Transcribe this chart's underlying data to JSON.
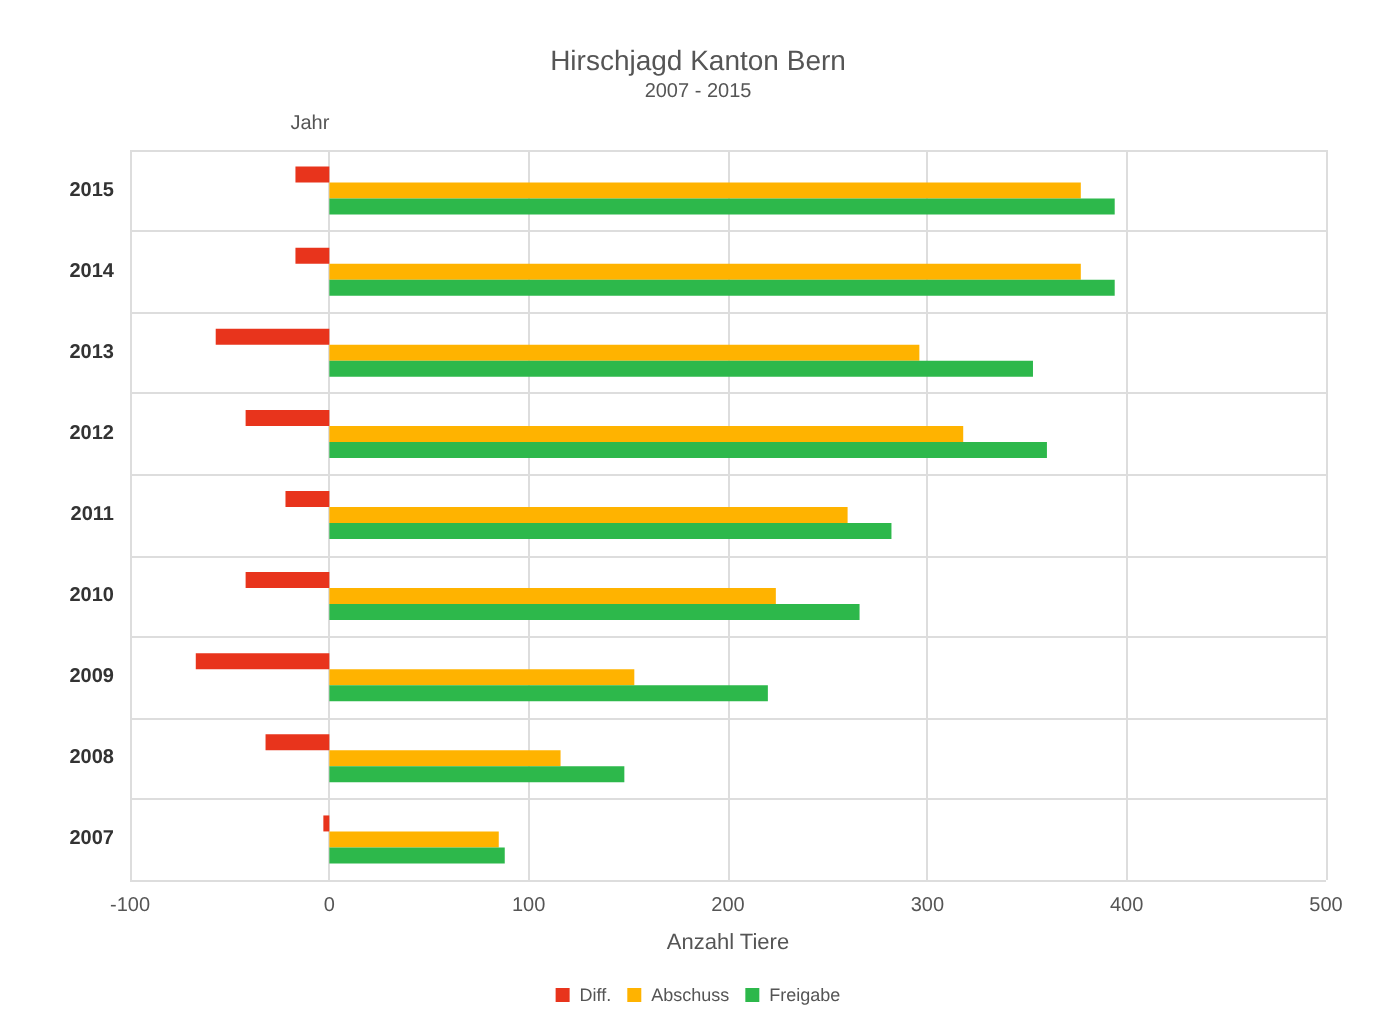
{
  "chart_data": {
    "type": "bar",
    "orientation": "horizontal",
    "title": "Hirschjagd Kanton Bern",
    "subtitle": "2007 - 2015",
    "xlabel": "Anzahl Tiere",
    "ylabel": "Jahr",
    "categories": [
      "2015",
      "2014",
      "2013",
      "2012",
      "2011",
      "2010",
      "2009",
      "2008",
      "2007"
    ],
    "series": [
      {
        "name": "Diff.",
        "color": "#e8341c",
        "values": [
          -17,
          -17,
          -57,
          -42,
          -22,
          -42,
          -67,
          -32,
          -3
        ]
      },
      {
        "name": "Abschuss",
        "color": "#ffb300",
        "values": [
          377,
          377,
          296,
          318,
          260,
          224,
          153,
          116,
          85
        ]
      },
      {
        "name": "Freigabe",
        "color": "#2db84b",
        "values": [
          394,
          394,
          353,
          360,
          282,
          266,
          220,
          148,
          88
        ]
      }
    ],
    "xlim": [
      -100,
      500
    ],
    "xticks": [
      -100,
      0,
      100,
      200,
      300,
      400,
      500
    ],
    "grid": true,
    "legend": "bottom"
  }
}
